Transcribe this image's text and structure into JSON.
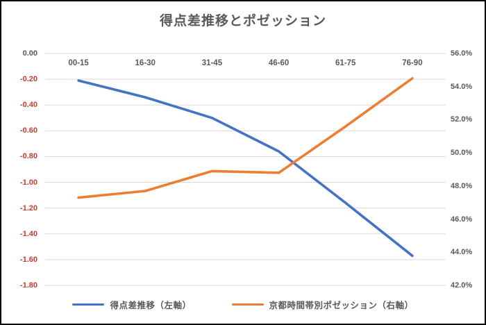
{
  "chart_data": {
    "type": "line",
    "title": "得点差推移とポゼッション",
    "categories": [
      "00-15",
      "16-30",
      "31-45",
      "46-60",
      "61-75",
      "76-90"
    ],
    "series": [
      {
        "name": "得点差推移（左軸）",
        "axis": "left",
        "color": "#4472C4",
        "values": [
          -0.21,
          -0.34,
          -0.5,
          -0.76,
          -1.16,
          -1.57
        ]
      },
      {
        "name": "京都時間帯別ポゼッション（右軸）",
        "axis": "right",
        "color": "#ED7D31",
        "values": [
          47.3,
          47.7,
          48.9,
          48.8,
          51.6,
          54.5
        ]
      }
    ],
    "left_axis": {
      "min": -1.8,
      "max": 0.0,
      "tick_step": 0.2,
      "tick_labels": [
        "0.00",
        "-0.20",
        "-0.40",
        "-0.60",
        "-0.80",
        "-1.00",
        "-1.20",
        "-1.40",
        "-1.60",
        "-1.80"
      ],
      "zero_label_color": "#595959",
      "negative_label_color": "#C43B32"
    },
    "right_axis": {
      "min": 42.0,
      "max": 56.0,
      "tick_step": 2.0,
      "tick_labels": [
        "56.0%",
        "54.0%",
        "52.0%",
        "50.0%",
        "48.0%",
        "46.0%",
        "44.0%",
        "42.0%"
      ],
      "label_color": "#595959"
    },
    "grid": {
      "on": true,
      "color": "#D9D9D9",
      "follows": "left_axis"
    },
    "legend_position": "bottom",
    "x_labels_position": "top-inside"
  }
}
